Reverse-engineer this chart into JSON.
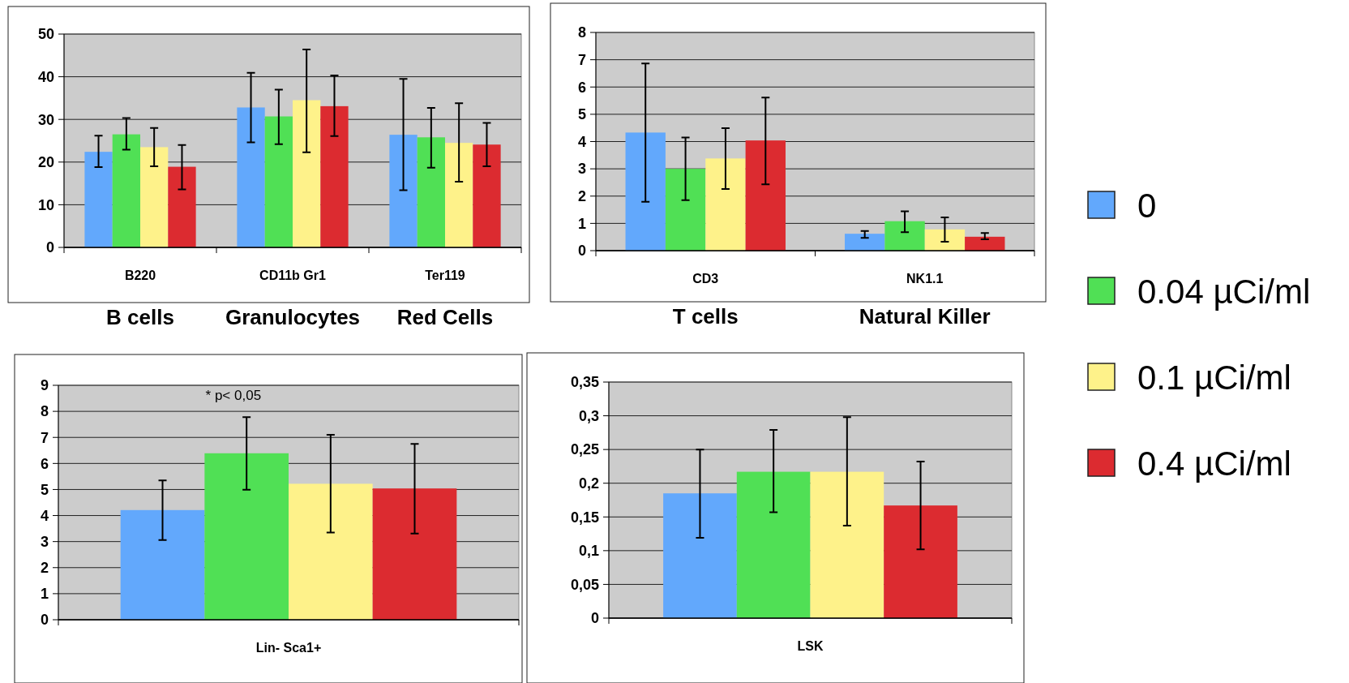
{
  "chart_data": [
    {
      "type": "bar",
      "categories": [
        "B220",
        "CD11b Gr1",
        "Ter119"
      ],
      "ylim": [
        0,
        50
      ],
      "yticks": [
        0,
        10,
        20,
        30,
        40,
        50
      ],
      "grid": "y",
      "legend": false,
      "annotations": [
        "B cells",
        "Granulocytes",
        "Red Cells"
      ],
      "series": [
        {
          "color": "#62a8fc",
          "values": [
            22.4,
            32.8,
            26.4
          ],
          "errors": [
            [
              18.8,
              26.2
            ],
            [
              24.6,
              40.9
            ],
            [
              13.4,
              39.5
            ]
          ]
        },
        {
          "color": "#50e055",
          "values": [
            26.5,
            30.7,
            25.8
          ],
          "errors": [
            [
              22.9,
              30.3
            ],
            [
              24.2,
              37.0
            ],
            [
              18.7,
              32.7
            ]
          ]
        },
        {
          "color": "#fef28a",
          "values": [
            23.5,
            34.5,
            24.5
          ],
          "errors": [
            [
              19.0,
              28.0
            ],
            [
              22.3,
              46.4
            ],
            [
              15.4,
              33.8
            ]
          ]
        },
        {
          "color": "#dc2b30",
          "values": [
            18.9,
            33.1,
            24.1
          ],
          "errors": [
            [
              13.6,
              24.0
            ],
            [
              26.1,
              40.3
            ],
            [
              19.0,
              29.2
            ]
          ]
        }
      ]
    },
    {
      "type": "bar",
      "categories": [
        "CD3",
        "NK1.1"
      ],
      "ylim": [
        0,
        8
      ],
      "yticks": [
        0,
        1,
        2,
        3,
        4,
        5,
        6,
        7,
        8
      ],
      "grid": "y",
      "legend": "right",
      "annotations": [
        "T cells",
        "Natural Killer"
      ],
      "series": [
        {
          "name": "0",
          "color": "#62a8fc",
          "values": [
            4.33,
            0.62
          ],
          "errors": [
            [
              1.79,
              6.86
            ],
            [
              0.47,
              0.72
            ]
          ]
        },
        {
          "name": "0.04 µCi/ml",
          "color": "#50e055",
          "values": [
            3.0,
            1.08
          ],
          "errors": [
            [
              1.85,
              4.15
            ],
            [
              0.68,
              1.44
            ]
          ]
        },
        {
          "name": "0.1 µCi/ml",
          "color": "#fef28a",
          "values": [
            3.38,
            0.78
          ],
          "errors": [
            [
              2.26,
              4.49
            ],
            [
              0.33,
              1.22
            ]
          ]
        },
        {
          "name": "0.4 µCi/ml",
          "color": "#dc2b30",
          "values": [
            4.04,
            0.51
          ],
          "errors": [
            [
              2.43,
              5.61
            ],
            [
              0.42,
              0.65
            ]
          ]
        }
      ]
    },
    {
      "type": "bar",
      "categories": [
        "Lin- Sca1+"
      ],
      "ylim": [
        0,
        9
      ],
      "yticks": [
        0,
        1,
        2,
        3,
        4,
        5,
        6,
        7,
        8,
        9
      ],
      "grid": "y",
      "legend": false,
      "annotations": [
        "* p< 0,05"
      ],
      "series": [
        {
          "color": "#62a8fc",
          "values": [
            4.21
          ],
          "errors": [
            [
              3.06,
              5.35
            ]
          ]
        },
        {
          "color": "#50e055",
          "values": [
            6.39
          ],
          "errors": [
            [
              4.99,
              7.78
            ]
          ]
        },
        {
          "color": "#fef28a",
          "values": [
            5.22
          ],
          "errors": [
            [
              3.35,
              7.1
            ]
          ]
        },
        {
          "color": "#dc2b30",
          "values": [
            5.04
          ],
          "errors": [
            [
              3.31,
              6.75
            ]
          ]
        }
      ]
    },
    {
      "type": "bar",
      "categories": [
        "LSK"
      ],
      "ylim": [
        0,
        0.35
      ],
      "yticks": [
        0,
        {
          "value": 0.05,
          "label": "0,05"
        },
        {
          "value": 0.1,
          "label": "0,1"
        },
        {
          "value": 0.15,
          "label": "0,15"
        },
        {
          "value": 0.2,
          "label": "0,2"
        },
        {
          "value": 0.25,
          "label": "0,25"
        },
        {
          "value": 0.3,
          "label": "0,3"
        },
        {
          "value": 0.35,
          "label": "0,35"
        }
      ],
      "grid": "y",
      "legend": false,
      "series": [
        {
          "color": "#62a8fc",
          "values": [
            0.185
          ],
          "errors": [
            [
              0.119,
              0.25
            ]
          ]
        },
        {
          "color": "#50e055",
          "values": [
            0.217
          ],
          "errors": [
            [
              0.157,
              0.279
            ]
          ]
        },
        {
          "color": "#fef28a",
          "values": [
            0.217
          ],
          "errors": [
            [
              0.137,
              0.298
            ]
          ]
        },
        {
          "color": "#dc2b30",
          "values": [
            0.167
          ],
          "errors": [
            [
              0.102,
              0.232
            ]
          ]
        }
      ]
    }
  ]
}
